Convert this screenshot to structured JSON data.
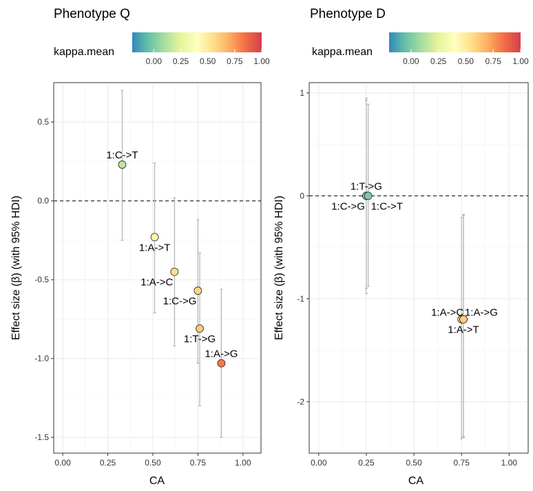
{
  "chart_data": [
    {
      "type": "scatter",
      "title": "Phenotype Q",
      "legend_title": "kappa.mean",
      "legend_placement": "top",
      "colorbar_ticks": [
        "0.00",
        "0.25",
        "0.50",
        "0.75",
        "1.00"
      ],
      "colorbar_range": [
        -0.2,
        1.0
      ],
      "xlabel": "CA",
      "ylabel": "Effect size (β) (with 95% HDI)",
      "xlim": [
        -0.05,
        1.1
      ],
      "ylim": [
        -1.6,
        0.75
      ],
      "xticks": [
        0,
        0.25,
        0.5,
        0.75,
        1.0
      ],
      "xtick_labels": [
        "0.00",
        "0.25",
        "0.50",
        "0.75",
        "1.00"
      ],
      "yticks": [
        -1.5,
        -1.0,
        -0.5,
        0.0,
        0.5
      ],
      "ytick_labels": [
        "-1.5",
        "-1.0",
        "-0.5",
        "0.0",
        "0.5"
      ],
      "reference_line_y": 0,
      "grid": true,
      "points": [
        {
          "label": "1:C->T",
          "x": 0.33,
          "y": 0.23,
          "lo": -0.25,
          "hi": 0.7,
          "kappa": 0.15,
          "label_pos": "above"
        },
        {
          "label": "1:A->T",
          "x": 0.51,
          "y": -0.23,
          "lo": -0.71,
          "hi": 0.24,
          "kappa": 0.45,
          "label_pos": "below"
        },
        {
          "label": "1:A->C",
          "x": 0.62,
          "y": -0.45,
          "lo": -0.92,
          "hi": 0.02,
          "kappa": 0.55,
          "label_pos": "belowleft"
        },
        {
          "label": "1:C->G",
          "x": 0.75,
          "y": -0.57,
          "lo": -1.03,
          "hi": -0.12,
          "kappa": 0.58,
          "label_pos": "belowleft"
        },
        {
          "label": "1:T->G",
          "x": 0.76,
          "y": -0.81,
          "lo": -1.3,
          "hi": -0.33,
          "kappa": 0.62,
          "label_pos": "below"
        },
        {
          "label": "1:A->G",
          "x": 0.88,
          "y": -1.03,
          "lo": -1.5,
          "hi": -0.56,
          "kappa": 0.82,
          "label_pos": "above"
        }
      ]
    },
    {
      "type": "scatter",
      "title": "Phenotype D",
      "legend_title": "kappa.mean",
      "legend_placement": "top",
      "colorbar_ticks": [
        "0.00",
        "0.25",
        "0.50",
        "0.75",
        "1.00"
      ],
      "colorbar_range": [
        -0.2,
        1.0
      ],
      "xlabel": "CA",
      "ylabel": "Effect size (β) (with 95% HDI)",
      "xlim": [
        -0.05,
        1.1
      ],
      "ylim": [
        -2.5,
        1.1
      ],
      "xticks": [
        0,
        0.25,
        0.5,
        0.75,
        1.0
      ],
      "xtick_labels": [
        "0.00",
        "0.25",
        "0.50",
        "0.75",
        "1.00"
      ],
      "yticks": [
        -2,
        -1,
        0,
        1
      ],
      "ytick_labels": [
        "-2",
        "-1",
        "0",
        "1"
      ],
      "reference_line_y": 0,
      "grid": true,
      "points": [
        {
          "label": "1:T->G",
          "x": 0.25,
          "y": 0.0,
          "lo": -0.95,
          "hi": 0.95,
          "kappa": 0.0,
          "label_pos": "above"
        },
        {
          "label": "1:C->G",
          "x": 0.25,
          "y": 0.0,
          "lo": -0.9,
          "hi": 0.93,
          "kappa": 0.0,
          "label_pos": "belowleft"
        },
        {
          "label": "1:C->T",
          "x": 0.26,
          "y": 0.0,
          "lo": -0.88,
          "hi": 0.89,
          "kappa": 0.0,
          "label_pos": "belowright"
        },
        {
          "label": "1:A->C",
          "x": 0.75,
          "y": -1.2,
          "lo": -2.36,
          "hi": -0.21,
          "kappa": 0.6,
          "label_pos": "aboveleft"
        },
        {
          "label": "1:A->G",
          "x": 0.76,
          "y": -1.2,
          "lo": -2.35,
          "hi": -0.19,
          "kappa": 0.6,
          "label_pos": "aboveright"
        },
        {
          "label": "1:A->T",
          "x": 0.76,
          "y": -1.2,
          "lo": -2.34,
          "hi": -0.18,
          "kappa": 0.6,
          "label_pos": "below"
        }
      ]
    }
  ],
  "colors": {
    "spectral": [
      "#3288bd",
      "#66c2a5",
      "#abdda4",
      "#e6f598",
      "#ffffbf",
      "#fee08b",
      "#fdae61",
      "#f46d43",
      "#d53e4f"
    ],
    "grid": "#ebebeb",
    "errorbar": "#b3b3b3",
    "panel_border": "#333333"
  }
}
